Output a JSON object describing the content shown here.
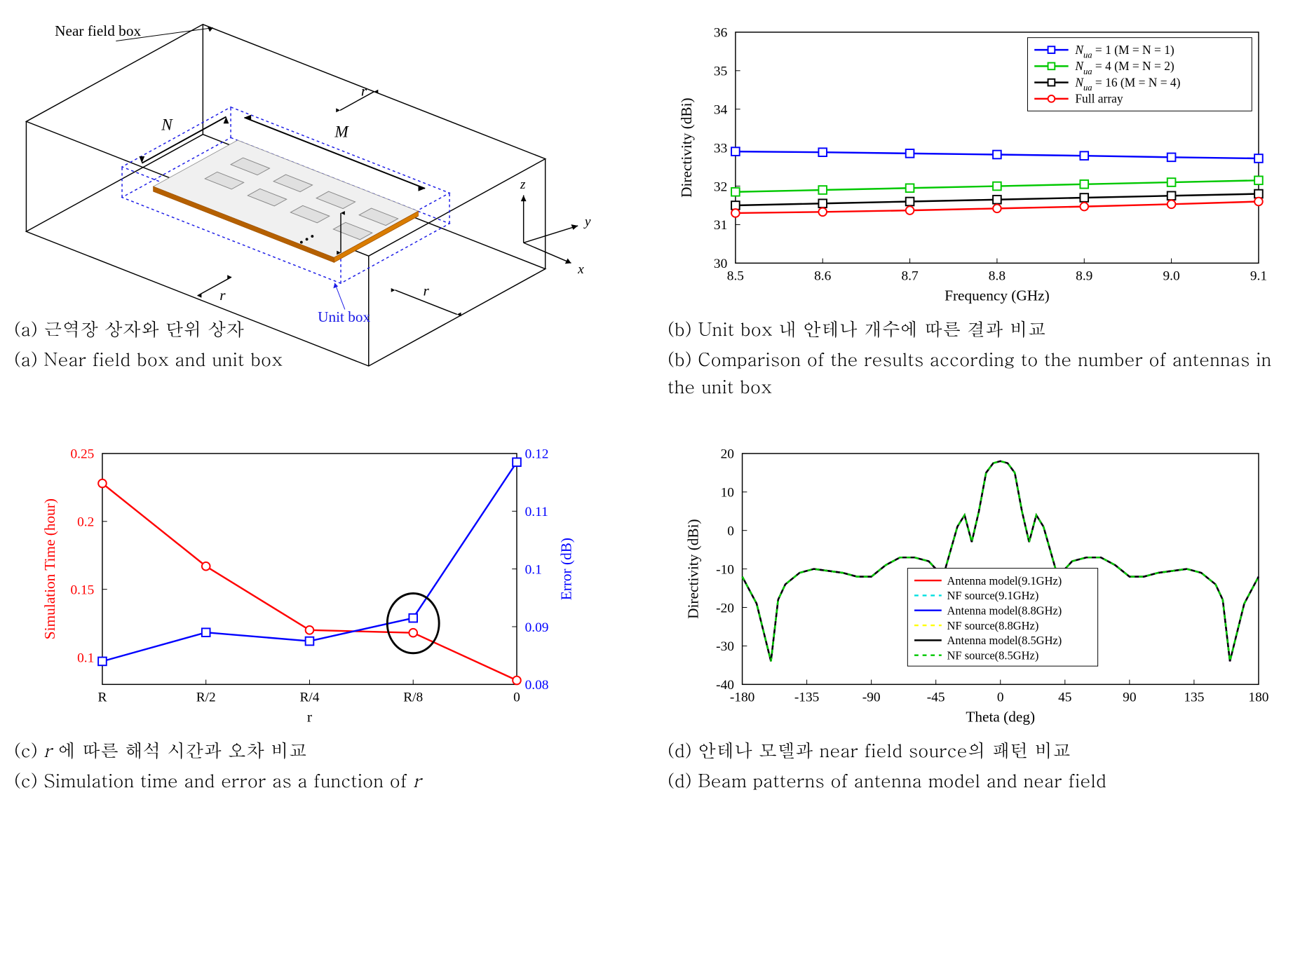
{
  "panel_a": {
    "labels": {
      "near_field_box": "Near field box",
      "unit_box": "Unit box",
      "M": "M",
      "N": "N",
      "r": "r",
      "x": "x",
      "y": "y",
      "z": "z"
    },
    "colors": {
      "outer_box": "#000000",
      "inner_box": "#1a1ae6",
      "substrate_top": "#f0f0f0",
      "substrate_edge": "#d97c00",
      "substrate_bottom": "#b56000",
      "metal": "#e0e0e0",
      "metal_edge": "#888888"
    },
    "caption_ko": "(a) 근역장 상자와 단위 상자",
    "caption_en": "(a) Near field box and unit box"
  },
  "panel_b": {
    "type": "line",
    "xlabel": "Frequency (GHz)",
    "ylabel": "Directivity (dBi)",
    "xticks": [
      8.5,
      8.6,
      8.7,
      8.8,
      8.9,
      9.0,
      9.1
    ],
    "yticks": [
      30,
      31,
      32,
      33,
      34,
      35,
      36
    ],
    "xlim": [
      8.5,
      9.1
    ],
    "ylim": [
      30,
      36
    ],
    "legend": [
      {
        "text": "N_{ua} = 1 (M = N = 1)",
        "color": "#0000ff",
        "marker": "square"
      },
      {
        "text": "N_{ua} = 4 (M = N = 2)",
        "color": "#00c800",
        "marker": "square"
      },
      {
        "text": "N_{ua} = 16 (M = N = 4)",
        "color": "#000000",
        "marker": "square"
      },
      {
        "text": "Full array",
        "color": "#ff0000",
        "marker": "circle"
      }
    ],
    "series": [
      {
        "color": "#0000ff",
        "marker": "square",
        "x": [
          8.5,
          8.6,
          8.7,
          8.8,
          8.9,
          9.0,
          9.1
        ],
        "y": [
          32.9,
          32.88,
          32.85,
          32.82,
          32.79,
          32.75,
          32.72
        ]
      },
      {
        "color": "#00c800",
        "marker": "square",
        "x": [
          8.5,
          8.6,
          8.7,
          8.8,
          8.9,
          9.0,
          9.1
        ],
        "y": [
          31.85,
          31.9,
          31.95,
          32.0,
          32.05,
          32.1,
          32.15
        ]
      },
      {
        "color": "#000000",
        "marker": "square",
        "x": [
          8.5,
          8.6,
          8.7,
          8.8,
          8.9,
          9.0,
          9.1
        ],
        "y": [
          31.5,
          31.55,
          31.6,
          31.65,
          31.7,
          31.75,
          31.8
        ]
      },
      {
        "color": "#ff0000",
        "marker": "circle",
        "x": [
          8.5,
          8.6,
          8.7,
          8.8,
          8.9,
          9.0,
          9.1
        ],
        "y": [
          31.3,
          31.33,
          31.37,
          31.42,
          31.47,
          31.53,
          31.6
        ]
      }
    ],
    "background_color": "#ffffff",
    "box_color": "#000000",
    "label_fontsize": 22,
    "title_fontsize": 20,
    "caption_ko": "(b) Unit box 내 안테나 개수에 따른 결과 비교",
    "caption_en": "(b) Comparison of the results according to the number of antennas in the unit box"
  },
  "panel_c": {
    "type": "dual-axis-line",
    "xlabel": "r",
    "ylabel_left": "Simulation Time (hour)",
    "ylabel_right": "Error (dB)",
    "xticks": [
      "R",
      "R/2",
      "R/4",
      "R/8",
      "0"
    ],
    "yticks_left": [
      "0.1",
      "0.15",
      "0.2",
      "0.25"
    ],
    "ylim_left": [
      0.08,
      0.25
    ],
    "yticks_right": [
      "0.08",
      "0.09",
      "0.1",
      "0.11",
      "0.12"
    ],
    "ylim_right": [
      0.08,
      0.12
    ],
    "series": [
      {
        "axis": "left",
        "color": "#ff0000",
        "marker": "circle",
        "yidx": [
          0.228,
          0.167,
          0.12,
          0.118,
          0.083
        ]
      },
      {
        "axis": "right",
        "color": "#0000ff",
        "marker": "square",
        "yidx": [
          0.084,
          0.089,
          0.0875,
          0.0915,
          0.1185
        ]
      }
    ],
    "ellipse": {
      "cx_idx": 3,
      "cy_left": 0.125,
      "rx": 0.25,
      "ry": 0.022
    },
    "left_color": "#ff0000",
    "right_color": "#0000ff",
    "caption_ko": "(c) r 에 따른 해석 시간과 오차 비교",
    "caption_en": "(c) Simulation time and error as a function of r"
  },
  "panel_d": {
    "type": "line",
    "xlabel": "Theta (deg)",
    "ylabel": "Directivity (dBi)",
    "xticks": [
      -180,
      -135,
      -90,
      -45,
      0,
      45,
      90,
      135,
      180
    ],
    "yticks": [
      -40,
      -30,
      -20,
      -10,
      0,
      10,
      20
    ],
    "xlim": [
      -180,
      180
    ],
    "ylim": [
      -40,
      20
    ],
    "legend": [
      {
        "text": "Antenna model(9.1GHz)",
        "color": "#ff0000",
        "dash": "0"
      },
      {
        "text": "NF source(9.1GHz)",
        "color": "#00e0e0",
        "dash": "6,6"
      },
      {
        "text": "Antenna model(8.8GHz)",
        "color": "#0000ff",
        "dash": "0"
      },
      {
        "text": "NF source(8.8GHz)",
        "color": "#ffff00",
        "dash": "6,6"
      },
      {
        "text": "Antenna model(8.5GHz)",
        "color": "#000000",
        "dash": "0"
      },
      {
        "text": "NF source(8.5GHz)",
        "color": "#00c800",
        "dash": "6,6"
      }
    ],
    "pattern": {
      "x": [
        -180,
        -170,
        -160,
        -155,
        -150,
        -140,
        -130,
        -120,
        -110,
        -100,
        -90,
        -80,
        -70,
        -60,
        -50,
        -40,
        -30,
        -25,
        -20,
        -15,
        -10,
        -5,
        0,
        5,
        10,
        15,
        20,
        25,
        30,
        40,
        50,
        60,
        70,
        80,
        90,
        100,
        110,
        120,
        130,
        140,
        150,
        155,
        160,
        170,
        180
      ],
      "y": [
        -12,
        -19,
        -34,
        -18,
        -14,
        -11,
        -10,
        -10.5,
        -11,
        -12,
        -12,
        -9,
        -7,
        -7,
        -8,
        -12,
        1,
        4,
        -3,
        5,
        15,
        17.5,
        18,
        17.5,
        15,
        5,
        -3,
        4,
        1,
        -12,
        -8,
        -7,
        -7,
        -9,
        -12,
        -12,
        -11,
        -10.5,
        -10,
        -11,
        -14,
        -18,
        -34,
        -19,
        -12
      ]
    },
    "series_colors": [
      "#ff0000",
      "#00e0e0",
      "#0000ff",
      "#ffff00",
      "#000000",
      "#00c800"
    ],
    "series_dash": [
      "0",
      "6,6",
      "0",
      "6,6",
      "0",
      "6,6"
    ],
    "caption_ko": "(d) 안테나 모델과 near field source의 패턴 비교",
    "caption_en": "(d) Beam patterns of antenna model and near field"
  }
}
